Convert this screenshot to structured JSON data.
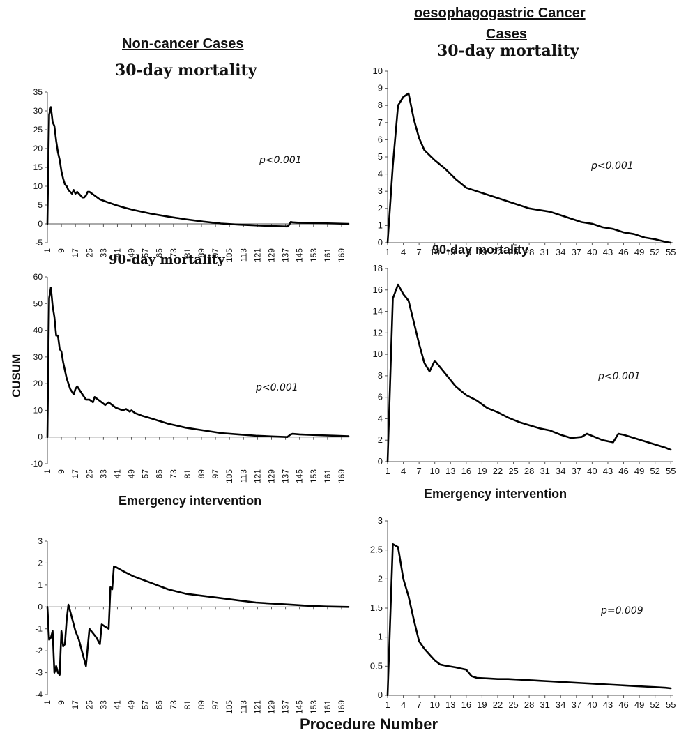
{
  "headers": {
    "left": "Non-cancer Cases",
    "right_line1": "oesophagogastric Cancer",
    "right_line2": "Cases"
  },
  "shared_y_label": "CUSUM",
  "shared_x_label": "Procedure Number",
  "chart_data": [
    {
      "id": "nc30",
      "type": "line",
      "title": "30-day mortality",
      "annotation": "p<0.001",
      "ylim": [
        -5,
        35
      ],
      "yticks": [
        -5,
        0,
        5,
        10,
        15,
        20,
        25,
        30,
        35
      ],
      "xlim": [
        1,
        173
      ],
      "xticks": [
        1,
        9,
        17,
        25,
        33,
        41,
        49,
        57,
        65,
        73,
        81,
        89,
        97,
        105,
        113,
        121,
        129,
        137,
        145,
        153,
        161,
        169
      ],
      "series": [
        {
          "x": [
            1,
            2,
            3,
            4,
            5,
            6,
            7,
            8,
            9,
            10,
            11,
            12,
            13,
            14,
            15,
            16,
            17,
            18,
            19,
            20,
            21,
            22,
            23,
            24,
            25,
            28,
            31,
            35,
            40,
            45,
            50,
            60,
            70,
            80,
            90,
            100,
            110,
            120,
            130,
            138,
            139,
            140,
            141,
            145,
            155,
            165,
            173
          ],
          "y": [
            0,
            29,
            31,
            27,
            26,
            22,
            19,
            17,
            14,
            12,
            10.5,
            10,
            9,
            8.5,
            8,
            9,
            8,
            8.5,
            8,
            7.5,
            7,
            7,
            7.5,
            8.5,
            8.5,
            7.5,
            6.5,
            5.8,
            5,
            4.3,
            3.7,
            2.7,
            1.9,
            1.2,
            0.6,
            0.1,
            -0.2,
            -0.4,
            -0.6,
            -0.7,
            -0.3,
            0.5,
            0.4,
            0.3,
            0.2,
            0.1,
            0
          ]
        }
      ]
    },
    {
      "id": "nc90",
      "type": "line",
      "title": "90-day mortality",
      "annotation": "p<0.001",
      "ylim": [
        -10,
        60
      ],
      "yticks": [
        -10,
        0,
        10,
        20,
        30,
        40,
        50,
        60
      ],
      "xlim": [
        1,
        173
      ],
      "xticks": [
        1,
        9,
        17,
        25,
        33,
        41,
        49,
        57,
        65,
        73,
        81,
        89,
        97,
        105,
        113,
        121,
        129,
        137,
        145,
        153,
        161,
        169
      ],
      "series": [
        {
          "x": [
            1,
            2,
            3,
            4,
            5,
            6,
            7,
            8,
            9,
            10,
            11,
            12,
            14,
            16,
            17,
            18,
            19,
            21,
            23,
            25,
            27,
            28,
            30,
            32,
            34,
            36,
            38,
            40,
            42,
            44,
            46,
            48,
            49,
            51,
            55,
            60,
            70,
            80,
            90,
            100,
            110,
            120,
            130,
            138,
            140,
            141,
            145,
            155,
            165,
            173
          ],
          "y": [
            0,
            52,
            56,
            49,
            45,
            38,
            38,
            33,
            32,
            28,
            25,
            22,
            18,
            16,
            18,
            19,
            18,
            16,
            14,
            14,
            13,
            15,
            14,
            13,
            12,
            13,
            12,
            11,
            10.5,
            10,
            10.5,
            9.5,
            10,
            9,
            8,
            7,
            5,
            3.5,
            2.5,
            1.5,
            1,
            0.5,
            0.2,
            0,
            1,
            1.2,
            1,
            0.7,
            0.5,
            0.3
          ]
        }
      ]
    },
    {
      "id": "ncemg",
      "type": "line",
      "title": "Emergency intervention",
      "annotation": "",
      "ylim": [
        -4,
        3
      ],
      "yticks": [
        -4,
        -3,
        -2,
        -1,
        0,
        1,
        2,
        3
      ],
      "xlim": [
        1,
        173
      ],
      "xticks": [
        1,
        9,
        17,
        25,
        33,
        41,
        49,
        57,
        65,
        73,
        81,
        89,
        97,
        105,
        113,
        121,
        129,
        137,
        145,
        153,
        161,
        169
      ],
      "series": [
        {
          "x": [
            1,
            2,
            3,
            4,
            5,
            6,
            7,
            8,
            9,
            10,
            11,
            12,
            13,
            15,
            17,
            19,
            21,
            23,
            25,
            27,
            29,
            31,
            32,
            34,
            36,
            37,
            38,
            39,
            40,
            45,
            50,
            60,
            70,
            80,
            90,
            100,
            110,
            120,
            130,
            140,
            150,
            160,
            173
          ],
          "y": [
            0,
            -1.5,
            -1.4,
            -1.1,
            -3,
            -2.7,
            -3,
            -3.1,
            -1.1,
            -1.8,
            -1.7,
            -0.6,
            0.1,
            -0.5,
            -1.1,
            -1.5,
            -2.1,
            -2.7,
            -1,
            -1.2,
            -1.4,
            -1.7,
            -0.8,
            -0.9,
            -1,
            0.9,
            0.8,
            1.85,
            1.82,
            1.6,
            1.4,
            1.1,
            0.8,
            0.6,
            0.5,
            0.4,
            0.3,
            0.2,
            0.15,
            0.1,
            0.05,
            0.02,
            0
          ]
        }
      ]
    },
    {
      "id": "oc30",
      "type": "line",
      "title": "30-day mortality",
      "annotation": "p<0.001",
      "ylim": [
        0,
        10
      ],
      "yticks": [
        0,
        1,
        2,
        3,
        4,
        5,
        6,
        7,
        8,
        9,
        10
      ],
      "xlim": [
        1,
        55.5
      ],
      "xticks": [
        1,
        4,
        7,
        10,
        13,
        16,
        19,
        22,
        25,
        28,
        31,
        34,
        37,
        40,
        43,
        46,
        49,
        52,
        55
      ],
      "series": [
        {
          "x": [
            1,
            2,
            3,
            4,
            5,
            6,
            7,
            8,
            10,
            12,
            14,
            16,
            18,
            20,
            22,
            24,
            26,
            28,
            30,
            32,
            34,
            36,
            38,
            40,
            42,
            44,
            46,
            48,
            50,
            52,
            54,
            55
          ],
          "y": [
            0,
            4.5,
            8,
            8.5,
            8.7,
            7.2,
            6.1,
            5.4,
            4.8,
            4.3,
            3.7,
            3.2,
            3,
            2.8,
            2.6,
            2.4,
            2.2,
            2,
            1.9,
            1.8,
            1.6,
            1.4,
            1.2,
            1.1,
            0.9,
            0.8,
            0.6,
            0.5,
            0.3,
            0.2,
            0.05,
            0
          ]
        }
      ]
    },
    {
      "id": "oc90",
      "type": "line",
      "title": "90-day mortality",
      "annotation": "p<0.001",
      "ylim": [
        0,
        18
      ],
      "yticks": [
        0,
        2,
        4,
        6,
        8,
        10,
        12,
        14,
        16,
        18
      ],
      "xlim": [
        1,
        55.5
      ],
      "xticks": [
        1,
        4,
        7,
        10,
        13,
        16,
        19,
        22,
        25,
        28,
        31,
        34,
        37,
        40,
        43,
        46,
        49,
        52,
        55
      ],
      "series": [
        {
          "x": [
            1,
            2,
            3,
            4,
            5,
            6,
            7,
            8,
            9,
            10,
            12,
            14,
            16,
            18,
            20,
            22,
            24,
            26,
            28,
            30,
            32,
            34,
            36,
            38,
            39,
            40,
            42,
            44,
            45,
            46,
            48,
            50,
            52,
            54,
            55
          ],
          "y": [
            0,
            15.2,
            16.5,
            15.6,
            15,
            13,
            11,
            9.2,
            8.4,
            9.4,
            8.2,
            7,
            6.2,
            5.7,
            5,
            4.6,
            4.1,
            3.7,
            3.4,
            3.1,
            2.9,
            2.5,
            2.2,
            2.3,
            2.6,
            2.4,
            2,
            1.8,
            2.6,
            2.5,
            2.2,
            1.9,
            1.6,
            1.3,
            1.1
          ]
        }
      ]
    },
    {
      "id": "ocemg",
      "type": "line",
      "title": "Emergency intervention",
      "annotation": "p=0.009",
      "ylim": [
        0,
        3
      ],
      "yticks": [
        0,
        0.5,
        1,
        1.5,
        2,
        2.5,
        3
      ],
      "xlim": [
        1,
        55.5
      ],
      "xticks": [
        1,
        4,
        7,
        10,
        13,
        16,
        19,
        22,
        25,
        28,
        31,
        34,
        37,
        40,
        43,
        46,
        49,
        52,
        55
      ],
      "series": [
        {
          "x": [
            1,
            2,
            3,
            4,
            5,
            6,
            7,
            8,
            9,
            10,
            11,
            12,
            14,
            16,
            17,
            18,
            20,
            22,
            24,
            26,
            28,
            30,
            32,
            34,
            36,
            38,
            40,
            42,
            44,
            46,
            48,
            50,
            52,
            54,
            55
          ],
          "y": [
            0,
            2.6,
            2.55,
            2,
            1.7,
            1.3,
            0.93,
            0.8,
            0.7,
            0.6,
            0.53,
            0.51,
            0.48,
            0.44,
            0.33,
            0.3,
            0.29,
            0.28,
            0.28,
            0.27,
            0.26,
            0.25,
            0.24,
            0.23,
            0.22,
            0.21,
            0.2,
            0.19,
            0.18,
            0.17,
            0.16,
            0.15,
            0.14,
            0.13,
            0.12
          ]
        }
      ]
    }
  ]
}
